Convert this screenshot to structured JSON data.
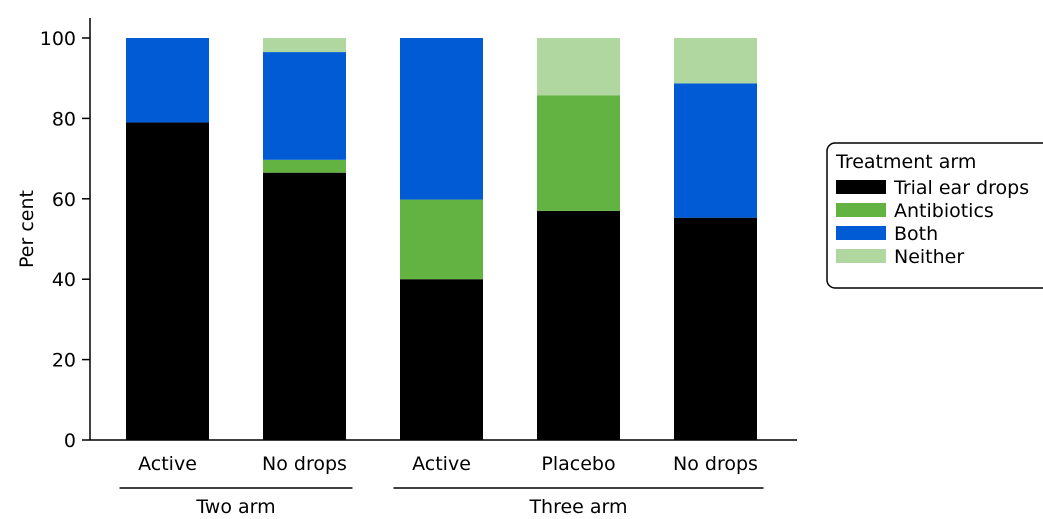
{
  "chart_data": {
    "type": "bar",
    "stacked": true,
    "title": "",
    "xlabel": "",
    "ylabel": "Per cent",
    "ylim": [
      0,
      100
    ],
    "yticks": [
      0,
      20,
      40,
      60,
      80,
      100
    ],
    "grid": false,
    "categories": [
      "Active",
      "No drops",
      "Active",
      "Placebo",
      "No drops"
    ],
    "groups": [
      {
        "label": "Two arm",
        "categories": [
          0,
          1
        ]
      },
      {
        "label": "Three arm",
        "categories": [
          2,
          3,
          4
        ]
      }
    ],
    "legend": {
      "title": "Treatment arm",
      "position": "right"
    },
    "series": [
      {
        "name": "Trial ear drops",
        "color": "#000000",
        "values": [
          79,
          66.5,
          40,
          57,
          55.3
        ]
      },
      {
        "name": "Antibiotics",
        "color": "#63b343",
        "values": [
          0,
          3.2,
          19.8,
          28.7,
          0
        ]
      },
      {
        "name": "Both",
        "color": "#005bd5",
        "values": [
          21,
          26.8,
          40.2,
          0,
          33.4
        ]
      },
      {
        "name": "Neither",
        "color": "#b0d7a0",
        "values": [
          0,
          3.5,
          0,
          14.3,
          11.3
        ]
      }
    ]
  }
}
